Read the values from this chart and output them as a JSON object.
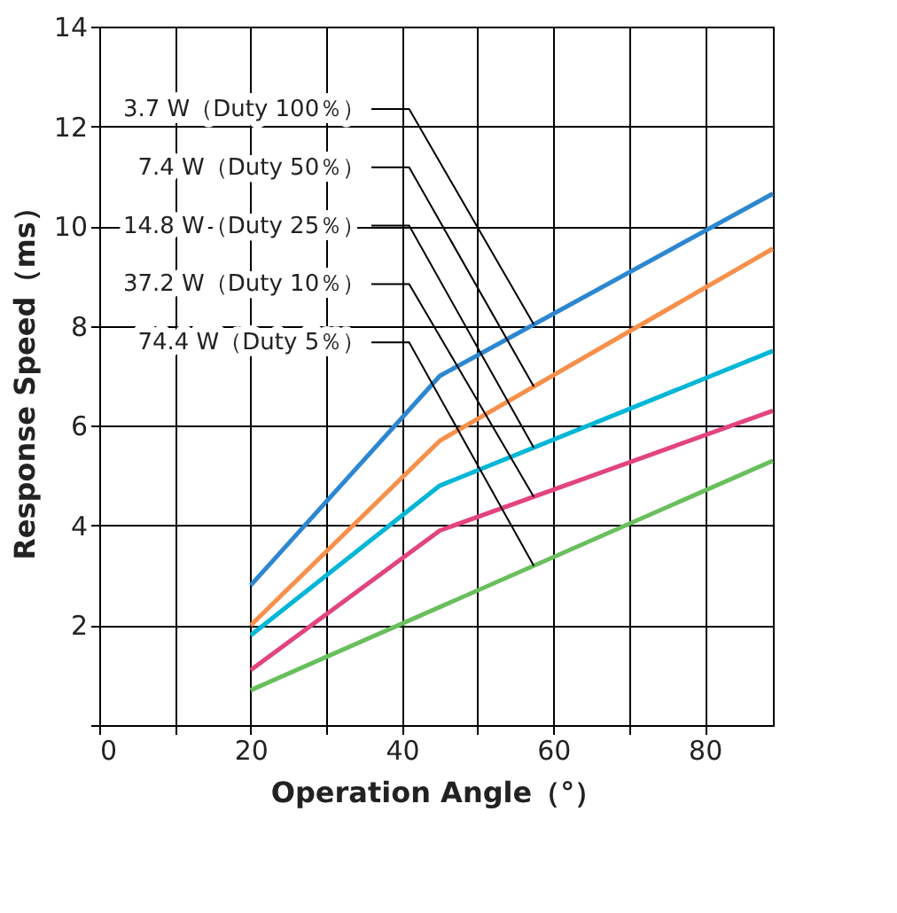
{
  "chart_data": {
    "type": "line",
    "xlabel": "Operation Angle（°）",
    "ylabel": "Response Speed（ms）",
    "series": [
      {
        "name": "3.7 W（Duty 100％）",
        "color": "#2d87d0",
        "x": [
          20,
          45,
          89
        ],
        "values": [
          2.8,
          7.0,
          10.65
        ]
      },
      {
        "name": "7.4 W（Duty 50％）",
        "color": "#f7904a",
        "x": [
          20,
          45,
          89
        ],
        "values": [
          2.0,
          5.7,
          9.55
        ]
      },
      {
        "name": "14.8 W（Duty 25％）",
        "color": "#00b6d6",
        "x": [
          20,
          45,
          89
        ],
        "values": [
          1.8,
          4.8,
          7.5
        ]
      },
      {
        "name": "37.2 W（Duty 10％）",
        "color": "#e2447f",
        "x": [
          20,
          45,
          89
        ],
        "values": [
          1.1,
          3.9,
          6.3
        ]
      },
      {
        "name": "74.4 W（Duty 5％）",
        "color": "#68bf5c",
        "x": [
          20,
          89
        ],
        "values": [
          0.7,
          5.3
        ]
      }
    ],
    "xlim": [
      0,
      89
    ],
    "ylim": [
      0,
      14
    ],
    "xticks": [
      0,
      {
        "value": 10,
        "label": null
      },
      20,
      {
        "value": 30,
        "label": null
      },
      40,
      {
        "value": 50,
        "label": null
      },
      60,
      {
        "value": 70,
        "label": null
      },
      80
    ],
    "yticks": [
      {
        "value": 0,
        "label": null
      },
      2,
      4,
      6,
      8,
      10,
      12,
      14
    ],
    "grid": true,
    "legend": false,
    "marker": "none",
    "line_style": "solid"
  }
}
